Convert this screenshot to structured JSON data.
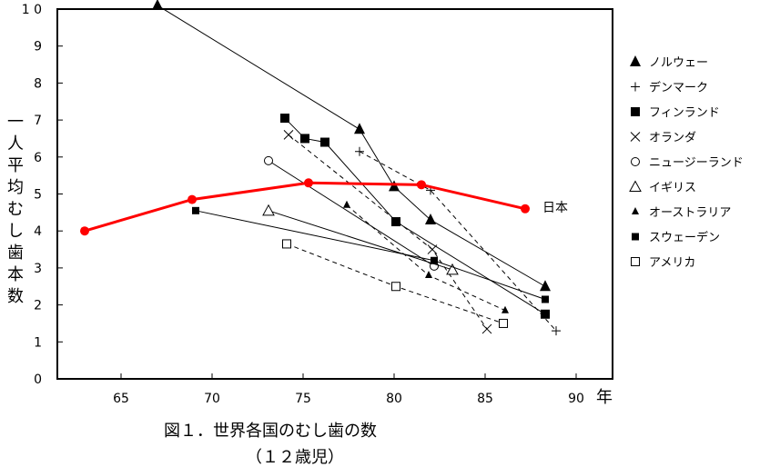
{
  "chart_data": {
    "type": "line",
    "title": "",
    "caption_line1": "図１．世界各国のむし歯の数",
    "caption_line2": "（１２歳児）",
    "xlabel": "年",
    "ylabel": "一人平均むし歯本数",
    "x_ticks": [
      "65",
      "70",
      "75",
      "80",
      "85",
      "90"
    ],
    "y_ticks": [
      "0",
      "1",
      "2",
      "3",
      "4",
      "5",
      "6",
      "7",
      "8",
      "9",
      "1 0"
    ],
    "xlim": [
      61.5,
      92
    ],
    "ylim": [
      0,
      10
    ],
    "grid": false,
    "legend_position": "right",
    "series": [
      {
        "name": "日本",
        "marker": "dot",
        "color": "#ff0000",
        "dash": "solid",
        "bold": true,
        "points": [
          [
            63,
            4.0
          ],
          [
            68.9,
            4.85
          ],
          [
            75.3,
            5.3
          ],
          [
            81.5,
            5.25
          ],
          [
            87.2,
            4.6
          ]
        ]
      },
      {
        "name": "ノルウェー",
        "marker": "triangle-filled",
        "color": "#000000",
        "dash": "solid",
        "points": [
          [
            67,
            10.1
          ],
          [
            78.1,
            6.75
          ],
          [
            80,
            5.2
          ],
          [
            82,
            4.3
          ],
          [
            88.3,
            2.5
          ]
        ]
      },
      {
        "name": "デンマーク",
        "marker": "plus",
        "color": "#000000",
        "dash": "dash",
        "points": [
          [
            78.1,
            6.15
          ],
          [
            82,
            5.1
          ],
          [
            88.9,
            1.3
          ]
        ]
      },
      {
        "name": "フィンランド",
        "marker": "square-filled",
        "color": "#000000",
        "dash": "solid",
        "points": [
          [
            74,
            7.05
          ],
          [
            75.1,
            6.5
          ],
          [
            76.2,
            6.4
          ],
          [
            80.1,
            4.25
          ],
          [
            88.3,
            1.75
          ]
        ]
      },
      {
        "name": "オランダ",
        "marker": "x",
        "color": "#000000",
        "dash": "dash",
        "points": [
          [
            74.2,
            6.6
          ],
          [
            82.1,
            3.5
          ],
          [
            85.1,
            1.35
          ]
        ]
      },
      {
        "name": "ニュージーランド",
        "marker": "circle-open",
        "color": "#000000",
        "dash": "solid",
        "points": [
          [
            73.1,
            5.9
          ],
          [
            82.2,
            3.05
          ]
        ]
      },
      {
        "name": "イギリス",
        "marker": "triangle-open",
        "color": "#000000",
        "dash": "solid",
        "points": [
          [
            73.1,
            4.55
          ],
          [
            83.2,
            2.95
          ]
        ]
      },
      {
        "name": "オーストラリア",
        "marker": "triangle-filled-small",
        "color": "#000000",
        "dash": "dash",
        "points": [
          [
            77.4,
            4.7
          ],
          [
            81.9,
            2.8
          ],
          [
            86.1,
            1.85
          ]
        ]
      },
      {
        "name": "スウェーデン",
        "marker": "square-filled-small",
        "color": "#000000",
        "dash": "solid",
        "points": [
          [
            69.1,
            4.55
          ],
          [
            82.2,
            3.2
          ],
          [
            88.3,
            2.15
          ]
        ]
      },
      {
        "name": "アメリカ",
        "marker": "square-open",
        "color": "#000000",
        "dash": "dash",
        "points": [
          [
            74.1,
            3.65
          ],
          [
            80.1,
            2.5
          ],
          [
            86,
            1.5
          ]
        ]
      }
    ]
  }
}
